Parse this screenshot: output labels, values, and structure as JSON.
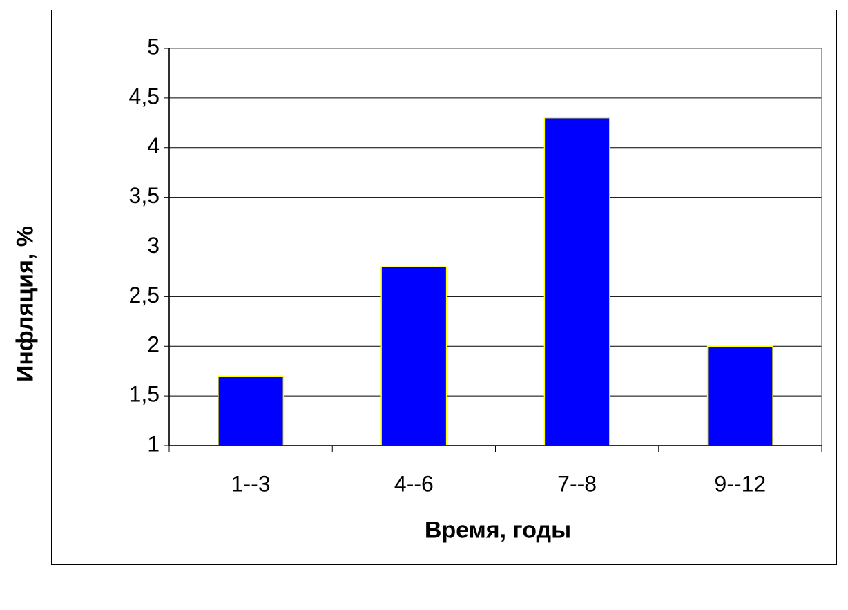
{
  "chart_data": {
    "type": "bar",
    "categories": [
      "1--3",
      "4--6",
      "7--8",
      "9--12"
    ],
    "values": [
      1.7,
      2.8,
      4.3,
      2.0
    ],
    "xlabel": "Время, годы",
    "ylabel": "Инфляция, %",
    "ylim": [
      1,
      5
    ],
    "yticks": [
      "1",
      "1,5",
      "2",
      "2,5",
      "3",
      "3,5",
      "4",
      "4,5",
      "5"
    ],
    "grid": true,
    "legend": false,
    "colors": {
      "bar_fill": "#0000ff",
      "bar_edge": "#ffff00",
      "grid": "#000000",
      "plot_border": "#808080"
    }
  }
}
